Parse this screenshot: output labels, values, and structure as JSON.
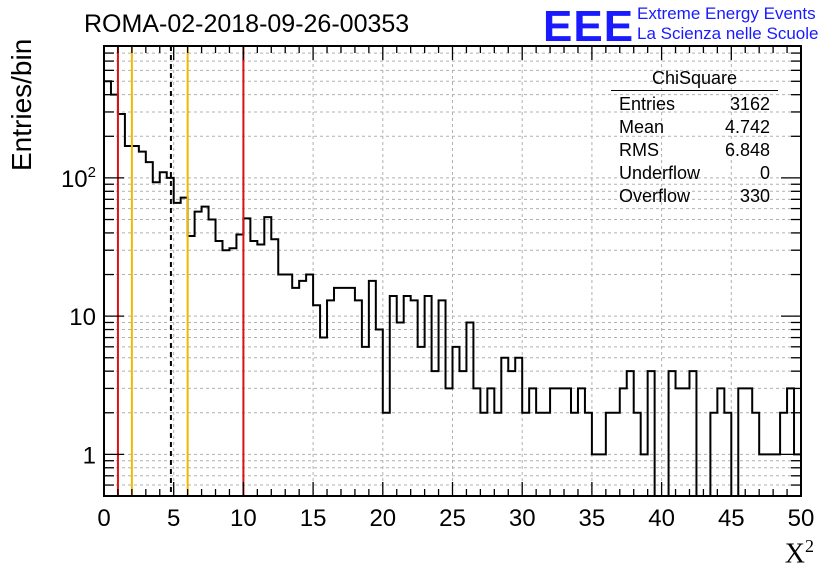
{
  "title": "ROMA-02-2018-09-26-00353",
  "logo": {
    "mark": "EEE",
    "line1": "Extreme Energy Events",
    "line2": "La Scienza nelle Scuole",
    "color": "#1a1aff"
  },
  "stats": {
    "title": "ChiSquare",
    "rows": [
      {
        "label": "Entries",
        "value": "3162"
      },
      {
        "label": "Mean",
        "value": "4.742"
      },
      {
        "label": "RMS",
        "value": "6.848"
      },
      {
        "label": "Underflow",
        "value": "0"
      },
      {
        "label": "Overflow",
        "value": "330"
      }
    ]
  },
  "chart_data": {
    "type": "bar",
    "histogram": "step",
    "title": "ROMA-02-2018-09-26-00353",
    "xlabel": "X",
    "xlabel_sup": "2",
    "ylabel": "Entries/bin",
    "xlim": [
      0,
      50
    ],
    "ylim": [
      0.5,
      900
    ],
    "yscale": "log",
    "bin_width": 0.5,
    "xticks": [
      0,
      5,
      10,
      15,
      20,
      25,
      30,
      35,
      40,
      45,
      50
    ],
    "yticks": [
      {
        "value": 1,
        "label": "1"
      },
      {
        "value": 10,
        "label": "10"
      },
      {
        "value": 100,
        "label": "10",
        "sup": "2"
      }
    ],
    "grid": true,
    "values": [
      500,
      400,
      290,
      170,
      170,
      155,
      130,
      93,
      110,
      100,
      66,
      72,
      38,
      57,
      62,
      50,
      35,
      30,
      31,
      39,
      51,
      35,
      33,
      52,
      36,
      20,
      20,
      16,
      18,
      20,
      12,
      7,
      13,
      16,
      16,
      16,
      13,
      6,
      18,
      8,
      2,
      14,
      9,
      14,
      13,
      6,
      14,
      4,
      13,
      3,
      6,
      4,
      9,
      3,
      2,
      3,
      2,
      5,
      4,
      5,
      2,
      3,
      2,
      2,
      3,
      3,
      3,
      2,
      3,
      2,
      1,
      1,
      2,
      2,
      3,
      4,
      2,
      1,
      4,
      0.5,
      0.5,
      4,
      3,
      3,
      4,
      0.5,
      0.5,
      2,
      3,
      2,
      0.5,
      3,
      3,
      2,
      1,
      1,
      1,
      2,
      3,
      1
    ],
    "vlines": [
      {
        "x": 1,
        "color": "#e01010",
        "style": "solid"
      },
      {
        "x": 2,
        "color": "#f0b800",
        "style": "solid"
      },
      {
        "x": 4.8,
        "color": "#000000",
        "style": "dashed"
      },
      {
        "x": 6,
        "color": "#f0b800",
        "style": "solid"
      },
      {
        "x": 10,
        "color": "#e01010",
        "style": "solid"
      }
    ]
  }
}
